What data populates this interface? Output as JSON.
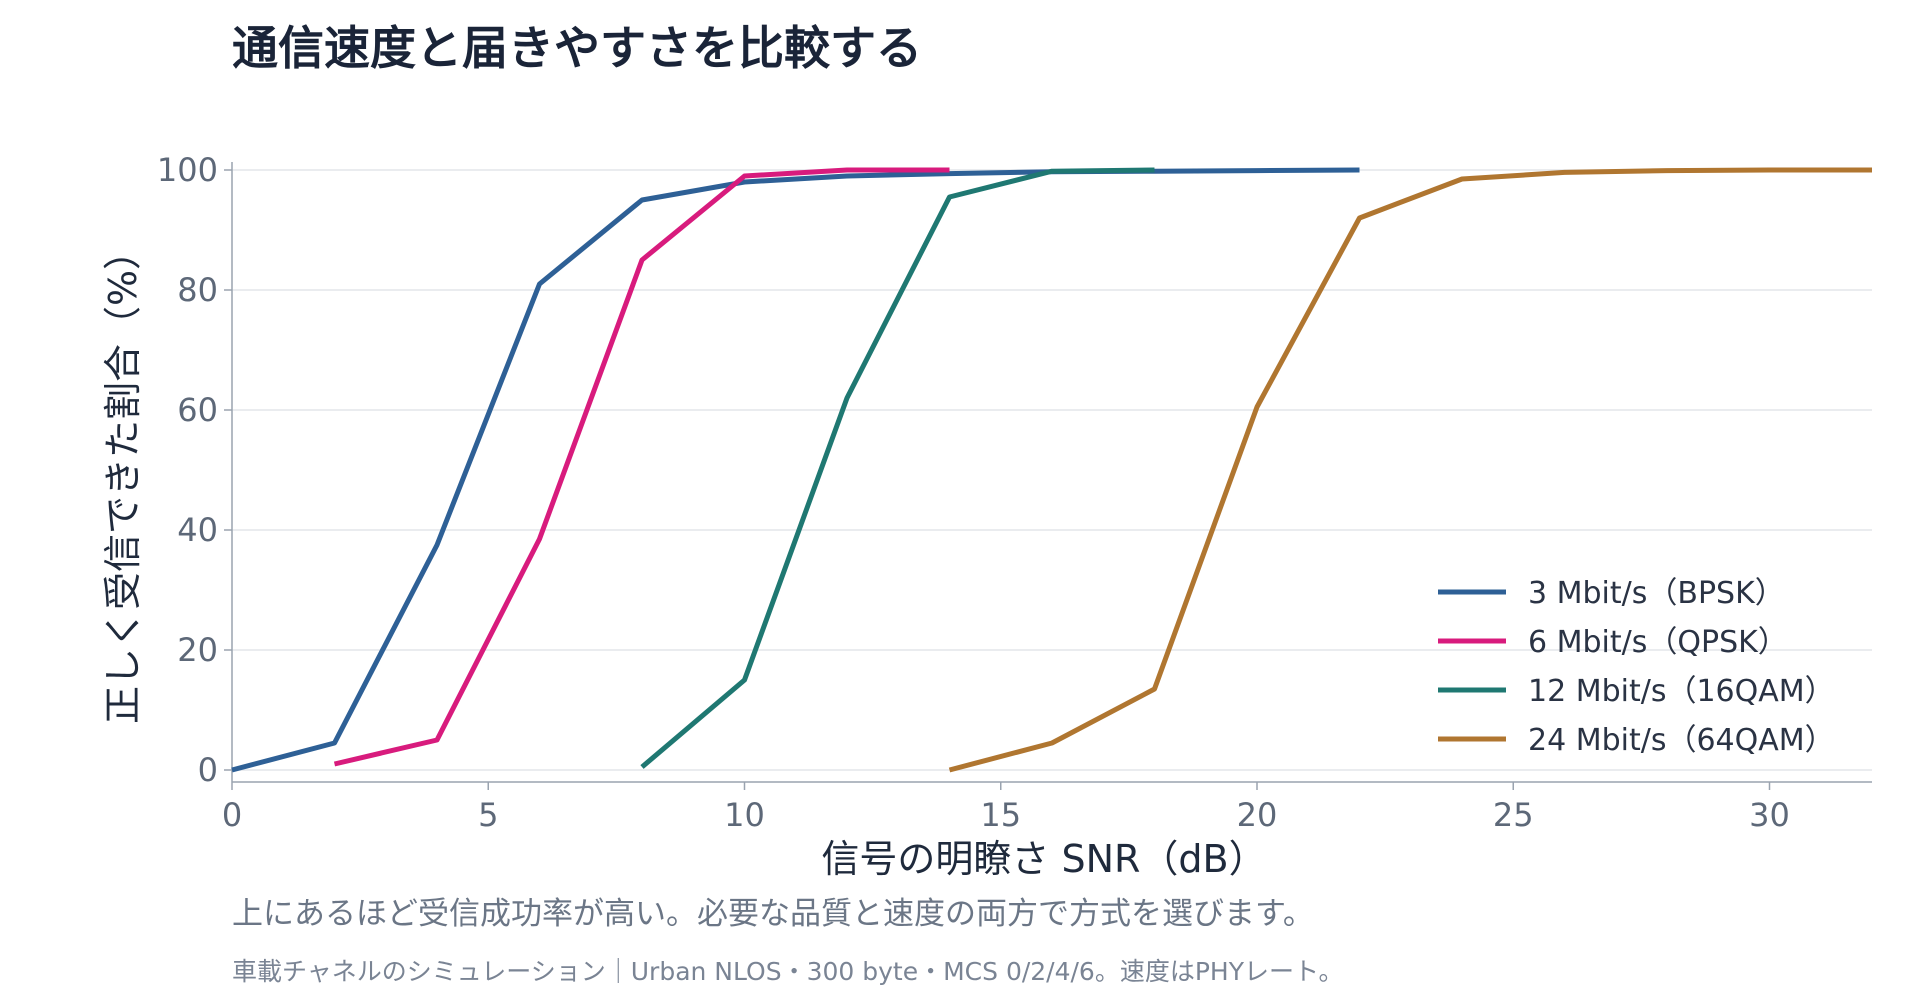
{
  "title": "通信速度と届きやすさを比較する",
  "subtitle": "上にあるほど受信成功率が高い。必要な品質と速度の両方で方式を選びます。",
  "note": "車載チャネルのシミュレーション｜Urban NLOS・300 byte・MCS 0/2/4/6。速度はPHYレート。",
  "chart_data": {
    "type": "line",
    "xlabel": "信号の明瞭さ SNR（dB）",
    "ylabel": "正しく受信できた割合（%）",
    "xlim": [
      0,
      32
    ],
    "ylim": [
      0,
      100
    ],
    "xticks": [
      0,
      5,
      10,
      15,
      20,
      25,
      30
    ],
    "yticks": [
      0,
      20,
      40,
      60,
      80,
      100
    ],
    "grid": "horizontal",
    "legend_position": "bottom-right",
    "series": [
      {
        "name": "3 Mbit/s（BPSK）",
        "color": "#2e6096",
        "x": [
          0,
          2,
          4,
          6,
          8,
          10,
          12,
          14,
          16,
          18,
          20,
          22
        ],
        "y": [
          0,
          4.5,
          37.5,
          81,
          95,
          98,
          99,
          99.4,
          99.7,
          99.8,
          99.9,
          100
        ]
      },
      {
        "name": "6 Mbit/s（QPSK）",
        "color": "#d81b7d",
        "x": [
          2,
          4,
          6,
          8,
          10,
          12,
          14
        ],
        "y": [
          1,
          5,
          38.5,
          85,
          99,
          100,
          100
        ]
      },
      {
        "name": "12 Mbit/s（16QAM）",
        "color": "#1f7872",
        "x": [
          8,
          10,
          12,
          14,
          16,
          18
        ],
        "y": [
          0.5,
          15,
          62,
          95.5,
          99.8,
          100
        ]
      },
      {
        "name": "24 Mbit/s（64QAM）",
        "color": "#b07630",
        "x": [
          14,
          16,
          18,
          20,
          22,
          24,
          26,
          28,
          30,
          32
        ],
        "y": [
          0,
          4.5,
          13.5,
          60.5,
          92,
          98.5,
          99.6,
          99.9,
          100,
          100
        ]
      }
    ]
  }
}
